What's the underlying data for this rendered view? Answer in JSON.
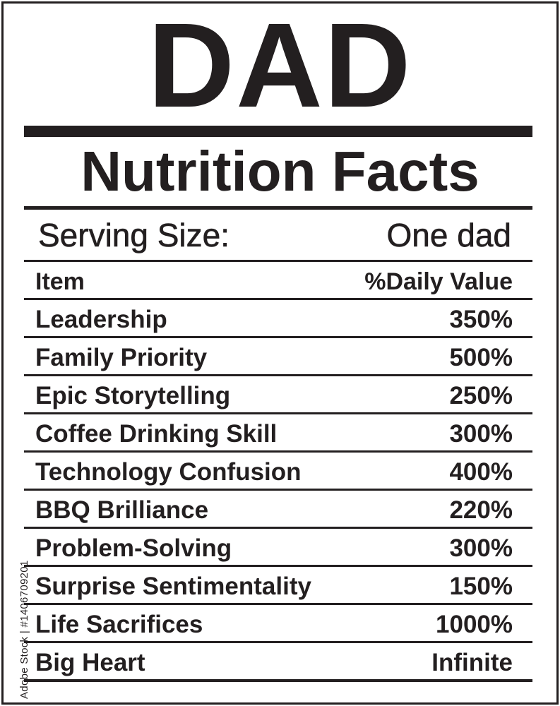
{
  "label": {
    "title": "DAD",
    "subtitle": "Nutrition Facts",
    "serving_label": "Serving Size:",
    "serving_value": "One dad",
    "header": {
      "item": "Item",
      "value": "%Daily Value"
    },
    "rows": [
      {
        "item": "Leadership",
        "value": "350%"
      },
      {
        "item": "Family Priority",
        "value": "500%"
      },
      {
        "item": "Epic Storytelling",
        "value": "250%"
      },
      {
        "item": "Coffee Drinking Skill",
        "value": "300%"
      },
      {
        "item": "Technology Confusion",
        "value": "400%"
      },
      {
        "item": "BBQ Brilliance",
        "value": "220%"
      },
      {
        "item": "Problem-Solving",
        "value": "300%"
      },
      {
        "item": "Surprise Sentimentality",
        "value": "150%"
      },
      {
        "item": "Life Sacrifices",
        "value": "1000%"
      },
      {
        "item": "Big Heart",
        "value": "Infinite"
      }
    ]
  },
  "watermark": {
    "stock_id": "Adobe Stock | #1406709201"
  },
  "colors": {
    "ink": "#231f20",
    "background": "#ffffff"
  }
}
